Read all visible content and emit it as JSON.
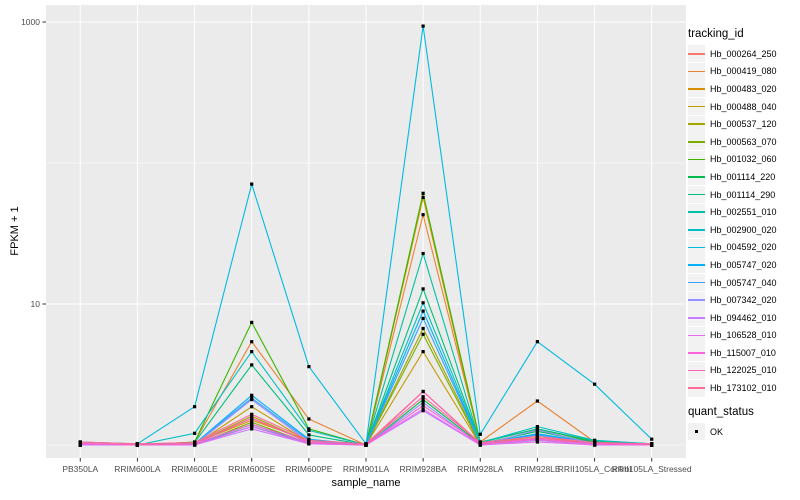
{
  "chart_data": {
    "type": "line",
    "title": "",
    "xlabel": "sample_name",
    "ylabel": "FPKM + 1",
    "y_scale": "log10",
    "y_ticks": [
      {
        "value": 10,
        "label": "10"
      },
      {
        "value": 1000,
        "label": "1000"
      }
    ],
    "y_minor_gridlines": [
      1,
      100
    ],
    "ylim": [
      0.93,
      1050
    ],
    "grid": true,
    "panel_bg": "#EBEBEB",
    "grid_color": "#FFFFFF",
    "axis_text_color": "#4D4D4D",
    "tick_color": "#333333",
    "point_color": "#000000",
    "key_bg": "#F2F2F2",
    "categories": [
      "PB350LA",
      "RRIM600LA",
      "RRIM600LE",
      "RRIM600SE",
      "RRIM600PE",
      "RRIM901LA",
      "RRIM928BA",
      "RRIM928LA",
      "RRIM928LE",
      "RRII105LA_Control",
      "RRII105LA_Stressed"
    ],
    "legend": {
      "title": "tracking_id",
      "position": "right"
    },
    "legend2": {
      "title": "quant_status",
      "items": [
        {
          "label": "OK",
          "symbol": "black-point"
        }
      ]
    },
    "series": [
      {
        "name": "Hb_000264_250",
        "color": "#F8766D",
        "values": [
          1.05,
          1.02,
          1.03,
          1.55,
          1.05,
          1.02,
          2.4,
          1.03,
          1.1,
          1.03,
          1.02
        ]
      },
      {
        "name": "Hb_000419_080",
        "color": "#EA8331",
        "values": [
          1.02,
          1.0,
          1.05,
          5.4,
          1.53,
          1.0,
          43,
          1.05,
          2.05,
          1.05,
          1.02
        ]
      },
      {
        "name": "Hb_000483_020",
        "color": "#D89000",
        "values": [
          1.0,
          1.0,
          1.03,
          1.5,
          1.08,
          1.0,
          57,
          1.02,
          1.15,
          1.02,
          1.0
        ]
      },
      {
        "name": "Hb_000488_040",
        "color": "#C09B00",
        "values": [
          1.0,
          1.0,
          1.0,
          1.87,
          1.05,
          1.0,
          4.6,
          1.0,
          1.1,
          1.0,
          1.0
        ]
      },
      {
        "name": "Hb_000537_120",
        "color": "#A3A500",
        "values": [
          1.0,
          1.0,
          1.02,
          1.6,
          1.05,
          1.0,
          6.7,
          1.02,
          1.12,
          1.02,
          1.0
        ]
      },
      {
        "name": "Hb_000563_070",
        "color": "#7CAE00",
        "values": [
          1.0,
          1.0,
          1.0,
          1.45,
          1.03,
          1.0,
          6.1,
          1.0,
          1.08,
          1.0,
          1.0
        ]
      },
      {
        "name": "Hb_001032_060",
        "color": "#39B600",
        "values": [
          1.0,
          1.0,
          1.05,
          7.4,
          1.3,
          1.0,
          61,
          1.05,
          1.3,
          1.05,
          1.0
        ]
      },
      {
        "name": "Hb_001114_220",
        "color": "#00BB4E",
        "values": [
          1.0,
          1.0,
          1.02,
          1.4,
          1.04,
          1.0,
          2.1,
          1.02,
          1.25,
          1.04,
          1.0
        ]
      },
      {
        "name": "Hb_001114_290",
        "color": "#00BF7D",
        "values": [
          1.0,
          1.0,
          1.04,
          3.7,
          1.18,
          1.0,
          12.8,
          1.04,
          1.3,
          1.07,
          1.02
        ]
      },
      {
        "name": "Hb_002551_010",
        "color": "#00C1A3",
        "values": [
          1.0,
          1.0,
          1.02,
          1.35,
          1.04,
          1.0,
          22.8,
          1.02,
          1.2,
          1.02,
          1.0
        ]
      },
      {
        "name": "Hb_002900_020",
        "color": "#00BFC4",
        "values": [
          1.0,
          1.0,
          1.21,
          4.6,
          1.27,
          1.0,
          10.2,
          1.04,
          1.35,
          1.08,
          1.02
        ]
      },
      {
        "name": "Hb_004592_020",
        "color": "#00BAE0",
        "values": [
          1.05,
          1.02,
          1.87,
          70.8,
          3.6,
          1.02,
          936,
          1.19,
          5.4,
          2.7,
          1.1
        ]
      },
      {
        "name": "Hb_005747_020",
        "color": "#00B0F6",
        "values": [
          1.0,
          1.0,
          1.02,
          2.25,
          1.1,
          1.0,
          8.9,
          1.02,
          1.2,
          1.04,
          1.0
        ]
      },
      {
        "name": "Hb_005747_040",
        "color": "#35A2FF",
        "values": [
          1.0,
          1.0,
          1.02,
          2.15,
          1.08,
          1.0,
          7.9,
          1.02,
          1.18,
          1.03,
          1.0
        ]
      },
      {
        "name": "Hb_007342_020",
        "color": "#9590FF",
        "values": [
          1.0,
          1.0,
          1.0,
          2.1,
          1.05,
          1.0,
          2.0,
          1.0,
          1.28,
          1.02,
          1.0
        ]
      },
      {
        "name": "Hb_094462_010",
        "color": "#C77CFF",
        "values": [
          1.0,
          1.0,
          1.0,
          1.3,
          1.02,
          1.0,
          1.75,
          1.0,
          1.08,
          1.0,
          1.0
        ]
      },
      {
        "name": "Hb_106528_010",
        "color": "#E76BF3",
        "values": [
          1.02,
          1.0,
          1.0,
          1.35,
          1.02,
          1.0,
          1.8,
          1.0,
          1.05,
          1.0,
          1.0
        ]
      },
      {
        "name": "Hb_115007_010",
        "color": "#FA62DB",
        "values": [
          1.02,
          1.0,
          1.02,
          1.4,
          1.04,
          1.0,
          1.9,
          1.02,
          1.1,
          1.02,
          1.0
        ]
      },
      {
        "name": "Hb_122025_010",
        "color": "#FF62BC",
        "values": [
          1.03,
          1.0,
          1.02,
          1.55,
          1.05,
          1.0,
          2.39,
          1.02,
          1.12,
          1.02,
          1.02
        ]
      },
      {
        "name": "Hb_173102_010",
        "color": "#FF6A98",
        "values": [
          1.05,
          1.02,
          1.04,
          1.65,
          1.08,
          1.02,
          2.2,
          1.04,
          1.15,
          1.04,
          1.02
        ]
      }
    ]
  }
}
